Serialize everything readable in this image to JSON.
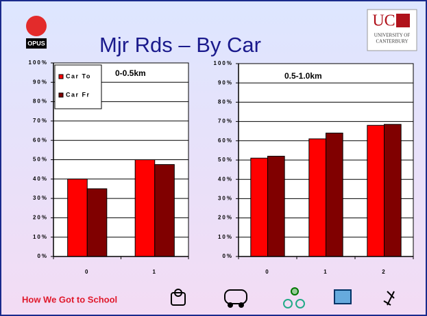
{
  "title": "Mjr Rds – By Car",
  "footer": "How We Got to School",
  "logo_left": "OPUS",
  "logo_right": {
    "mark": "UC",
    "line1": "UNIVERSITY OF",
    "line2": "CANTERBURY"
  },
  "chart_data": [
    {
      "type": "bar",
      "title": "0-0.5km",
      "categories": [
        "0",
        "1"
      ],
      "series": [
        {
          "name": "Car To",
          "color": "#ff0000",
          "values": [
            40,
            50
          ]
        },
        {
          "name": "Car Fr",
          "color": "#800000",
          "values": [
            35,
            47.5
          ]
        }
      ],
      "ylim": [
        0,
        100
      ],
      "yticks": [
        {
          "value": 0,
          "label": "0%"
        },
        {
          "value": 10,
          "label": "10%"
        },
        {
          "value": 20,
          "label": "20%"
        },
        {
          "value": 30,
          "label": "30%"
        },
        {
          "value": 40,
          "label": "40%"
        },
        {
          "value": 50,
          "label": "50%"
        },
        {
          "value": 60,
          "label": "60%"
        },
        {
          "value": 70,
          "label": "70%"
        },
        {
          "value": 80,
          "label": "80%"
        },
        {
          "value": 90,
          "label": "90%"
        },
        {
          "value": 100,
          "label": "100%"
        }
      ],
      "grid": true,
      "legend": "top-left"
    },
    {
      "type": "bar",
      "title": "0.5-1.0km",
      "categories": [
        "0",
        "1",
        "2"
      ],
      "series": [
        {
          "color": "#ff0000",
          "values": [
            51,
            61,
            68
          ]
        },
        {
          "color": "#800000",
          "values": [
            52,
            64,
            68.5
          ]
        }
      ],
      "ylim": [
        0,
        100
      ],
      "yticks": [
        {
          "value": 0,
          "label": "0%"
        },
        {
          "value": 10,
          "label": "10%"
        },
        {
          "value": 20,
          "label": "20%"
        },
        {
          "value": 30,
          "label": "30%"
        },
        {
          "value": 40,
          "label": "40%"
        },
        {
          "value": 50,
          "label": "50%"
        },
        {
          "value": 60,
          "label": "60%"
        },
        {
          "value": 70,
          "label": "70%"
        },
        {
          "value": 80,
          "label": "80%"
        },
        {
          "value": 90,
          "label": "90%"
        },
        {
          "value": 100,
          "label": "100%"
        }
      ],
      "grid": true
    }
  ]
}
